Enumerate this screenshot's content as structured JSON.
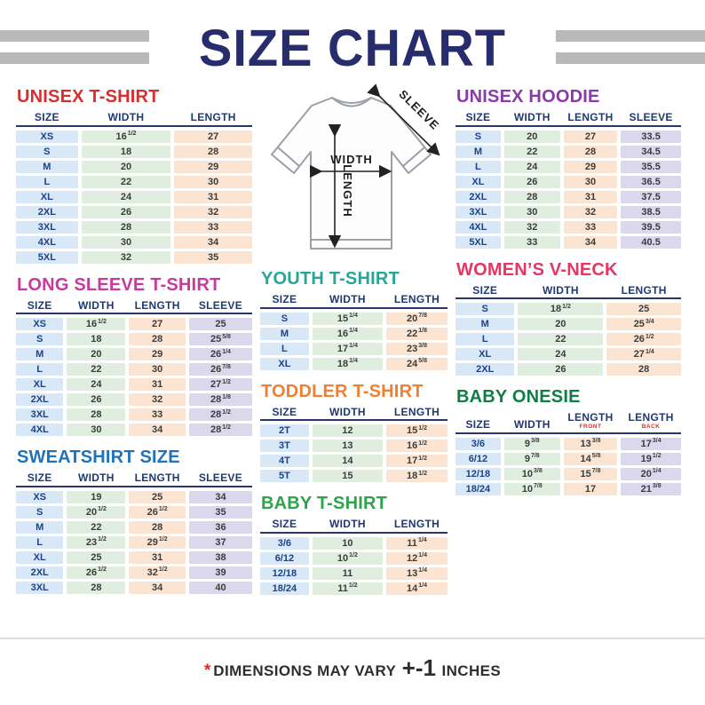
{
  "header": {
    "title": "SIZE CHART"
  },
  "diagram": {
    "width_label": "WIDTH",
    "length_label": "LENGTH",
    "sleeve_label": "SLEEVE"
  },
  "footer": {
    "asterisk": "*",
    "text": "DIMENSIONS MAY VARY",
    "plusminus": "+-1",
    "suffix": "INCHES"
  },
  "tables": {
    "unisex_tshirt": {
      "title": "UNISEX T-SHIRT",
      "accent": "#d62f2f",
      "columns": [
        {
          "label": "SIZE"
        },
        {
          "label": "WIDTH"
        },
        {
          "label": "LENGTH"
        }
      ],
      "col_types": [
        "size",
        "width",
        "length"
      ],
      "rows": [
        [
          "XS",
          "16 1/2",
          "27"
        ],
        [
          "S",
          "18",
          "28"
        ],
        [
          "M",
          "20",
          "29"
        ],
        [
          "L",
          "22",
          "30"
        ],
        [
          "XL",
          "24",
          "31"
        ],
        [
          "2XL",
          "26",
          "32"
        ],
        [
          "3XL",
          "28",
          "33"
        ],
        [
          "4XL",
          "30",
          "34"
        ],
        [
          "5XL",
          "32",
          "35"
        ]
      ]
    },
    "long_sleeve": {
      "title": "LONG SLEEVE T-SHIRT",
      "accent": "#c93a9e",
      "columns": [
        {
          "label": "SIZE"
        },
        {
          "label": "WIDTH"
        },
        {
          "label": "LENGTH"
        },
        {
          "label": "SLEEVE"
        }
      ],
      "col_types": [
        "size",
        "width",
        "length",
        "sleeve"
      ],
      "rows": [
        [
          "XS",
          "16 1/2",
          "27",
          "25"
        ],
        [
          "S",
          "18",
          "28",
          "25 5/8"
        ],
        [
          "M",
          "20",
          "29",
          "26 1/4"
        ],
        [
          "L",
          "22",
          "30",
          "26 7/8"
        ],
        [
          "XL",
          "24",
          "31",
          "27 1/2"
        ],
        [
          "2XL",
          "26",
          "32",
          "28 1/8"
        ],
        [
          "3XL",
          "28",
          "33",
          "28 1/2"
        ],
        [
          "4XL",
          "30",
          "34",
          "28 1/2"
        ]
      ]
    },
    "sweatshirt": {
      "title": "SWEATSHIRT SIZE",
      "accent": "#2272b9",
      "columns": [
        {
          "label": "SIZE"
        },
        {
          "label": "WIDTH"
        },
        {
          "label": "LENGTH"
        },
        {
          "label": "SLEEVE"
        }
      ],
      "col_types": [
        "size",
        "width",
        "length",
        "sleeve"
      ],
      "rows": [
        [
          "XS",
          "19",
          "25",
          "34"
        ],
        [
          "S",
          "20 1/2",
          "26 1/2",
          "35"
        ],
        [
          "M",
          "22",
          "28",
          "36"
        ],
        [
          "L",
          "23 1/2",
          "29 1/2",
          "37"
        ],
        [
          "XL",
          "25",
          "31",
          "38"
        ],
        [
          "2XL",
          "26 1/2",
          "32 1/2",
          "39"
        ],
        [
          "3XL",
          "28",
          "34",
          "40"
        ]
      ]
    },
    "youth_tshirt": {
      "title": "YOUTH T-SHIRT",
      "accent": "#29a596",
      "columns": [
        {
          "label": "SIZE"
        },
        {
          "label": "WIDTH"
        },
        {
          "label": "LENGTH"
        }
      ],
      "col_types": [
        "size",
        "width",
        "length"
      ],
      "rows": [
        [
          "S",
          "15 1/4",
          "20 7/8"
        ],
        [
          "M",
          "16 1/4",
          "22 1/8"
        ],
        [
          "L",
          "17 1/4",
          "23 3/8"
        ],
        [
          "XL",
          "18 1/4",
          "24 5/8"
        ]
      ]
    },
    "toddler_tshirt": {
      "title": "TODDLER T-SHIRT",
      "accent": "#f08033",
      "columns": [
        {
          "label": "SIZE"
        },
        {
          "label": "WIDTH"
        },
        {
          "label": "LENGTH"
        }
      ],
      "col_types": [
        "size",
        "width",
        "length"
      ],
      "rows": [
        [
          "2T",
          "12",
          "15 1/2"
        ],
        [
          "3T",
          "13",
          "16 1/2"
        ],
        [
          "4T",
          "14",
          "17 1/2"
        ],
        [
          "5T",
          "15",
          "18 1/2"
        ]
      ]
    },
    "baby_tshirt": {
      "title": "BABY T-SHIRT",
      "accent": "#2fa24a",
      "columns": [
        {
          "label": "SIZE"
        },
        {
          "label": "WIDTH"
        },
        {
          "label": "LENGTH"
        }
      ],
      "col_types": [
        "size",
        "width",
        "length"
      ],
      "rows": [
        [
          "3/6",
          "10",
          "11 1/4"
        ],
        [
          "6/12",
          "10 1/2",
          "12 1/4"
        ],
        [
          "12/18",
          "11",
          "13 1/4"
        ],
        [
          "18/24",
          "11 1/2",
          "14 1/4"
        ]
      ]
    },
    "unisex_hoodie": {
      "title": "UNISEX HOODIE",
      "accent": "#8a3ba8",
      "columns": [
        {
          "label": "SIZE"
        },
        {
          "label": "WIDTH"
        },
        {
          "label": "LENGTH"
        },
        {
          "label": "SLEEVE"
        }
      ],
      "col_types": [
        "size",
        "width",
        "length",
        "sleeve"
      ],
      "rows": [
        [
          "S",
          "20",
          "27",
          "33.5"
        ],
        [
          "M",
          "22",
          "28",
          "34.5"
        ],
        [
          "L",
          "24",
          "29",
          "35.5"
        ],
        [
          "XL",
          "26",
          "30",
          "36.5"
        ],
        [
          "2XL",
          "28",
          "31",
          "37.5"
        ],
        [
          "3XL",
          "30",
          "32",
          "38.5"
        ],
        [
          "4XL",
          "32",
          "33",
          "39.5"
        ],
        [
          "5XL",
          "33",
          "34",
          "40.5"
        ]
      ]
    },
    "womens_vneck": {
      "title": "WOMEN’S V-NECK",
      "accent": "#e73566",
      "columns": [
        {
          "label": "SIZE"
        },
        {
          "label": "WIDTH"
        },
        {
          "label": "LENGTH"
        }
      ],
      "col_types": [
        "size",
        "width",
        "length"
      ],
      "rows": [
        [
          "S",
          "18 1/2",
          "25"
        ],
        [
          "M",
          "20",
          "25 3/4"
        ],
        [
          "L",
          "22",
          "26 1/2"
        ],
        [
          "XL",
          "24",
          "27 1/4"
        ],
        [
          "2XL",
          "26",
          "28"
        ]
      ]
    },
    "baby_onesie": {
      "title": "BABY ONESIE",
      "accent": "#0f7d44",
      "columns": [
        {
          "label": "SIZE"
        },
        {
          "label": "WIDTH"
        },
        {
          "label": "LENGTH",
          "sub": "FRONT"
        },
        {
          "label": "LENGTH",
          "sub": "BACK"
        }
      ],
      "col_types": [
        "size",
        "width",
        "length",
        "sleeve"
      ],
      "rows": [
        [
          "3/6",
          "9 3/8",
          "13 3/8",
          "17 3/4"
        ],
        [
          "6/12",
          "9 7/8",
          "14 5/8",
          "19 1/2"
        ],
        [
          "12/18",
          "10 3/8",
          "15 7/8",
          "20 1/4"
        ],
        [
          "18/24",
          "10 7/8",
          "17",
          "21 3/8"
        ]
      ]
    }
  }
}
